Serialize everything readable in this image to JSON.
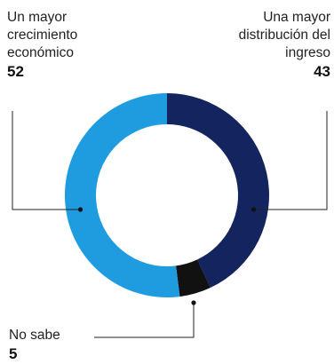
{
  "chart_data": {
    "type": "pie",
    "style": "donut",
    "categories": [
      "Una mayor distribución del ingreso",
      "No sabe",
      "Un mayor crecimiento económico"
    ],
    "values": [
      43,
      5,
      52
    ],
    "colors": [
      "#13245f",
      "#111111",
      "#1f9be0"
    ],
    "labels": [
      {
        "lines": [
          "Un mayor",
          "crecimiento",
          "económico"
        ],
        "value": "52"
      },
      {
        "lines": [
          "Una mayor",
          "distribución del",
          "ingreso"
        ],
        "value": "43"
      },
      {
        "lines": [
          "No sabe"
        ],
        "value": "5"
      }
    ]
  }
}
